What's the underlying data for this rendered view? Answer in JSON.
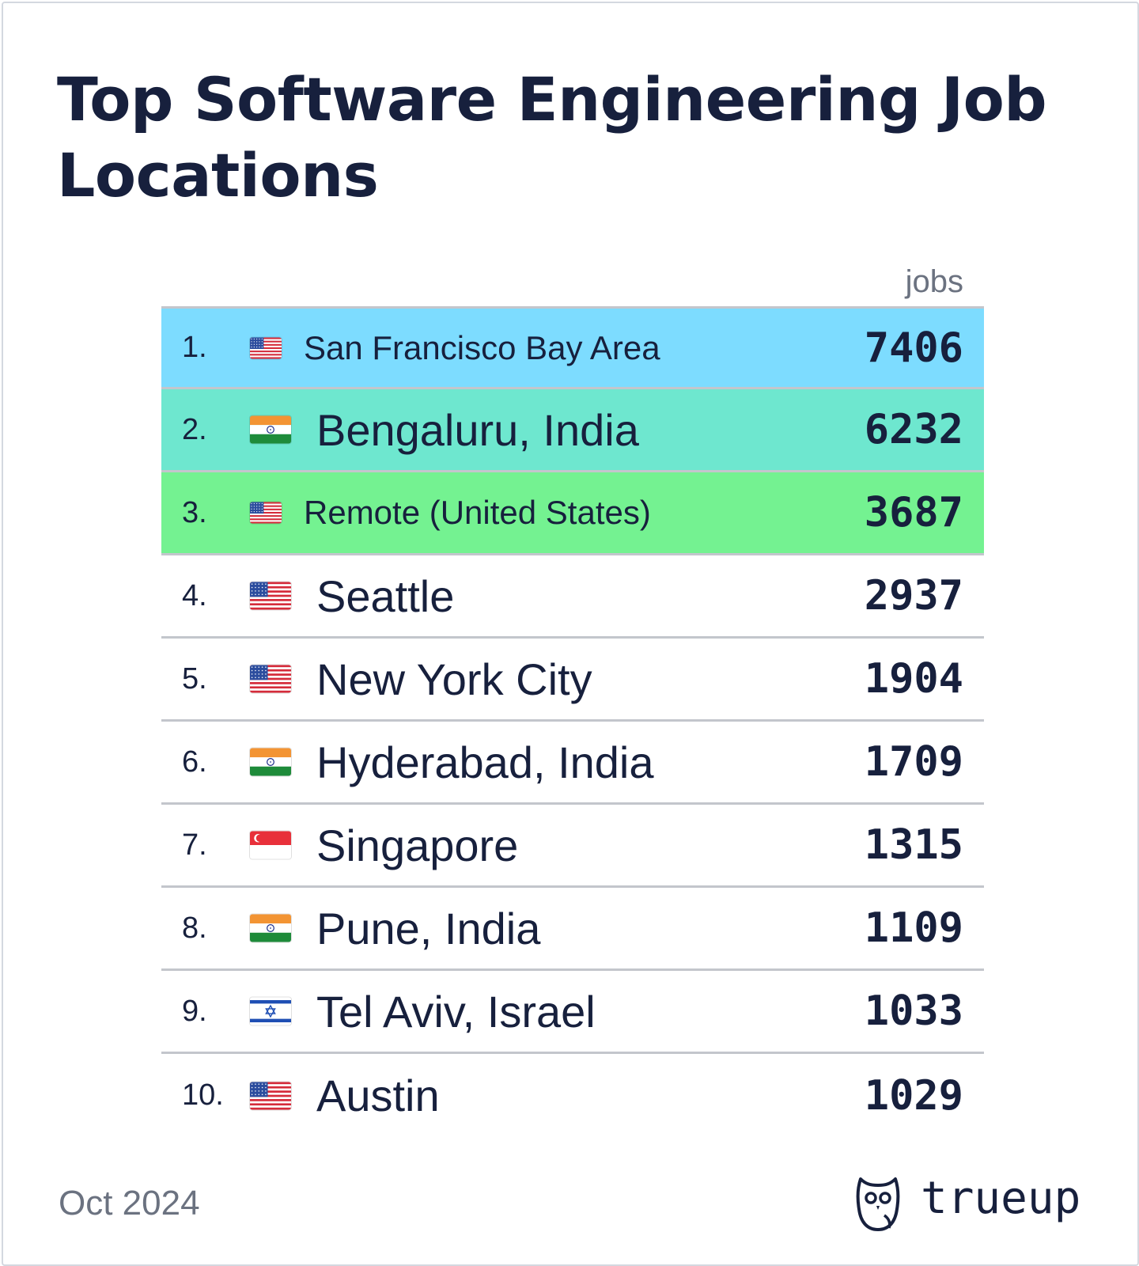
{
  "title": "Top Software Engineering Job Locations",
  "footer": {
    "date": "Oct 2024",
    "brand": "trueup"
  },
  "chart_data": {
    "type": "table",
    "title": "Top Software Engineering Job Locations",
    "value_header": "jobs",
    "rows": [
      {
        "rank": "1.",
        "location": "San Francisco Bay Area",
        "flag": "us-flag-icon",
        "jobs": 7406,
        "highlight": "#7ddcff"
      },
      {
        "rank": "2.",
        "location": "Bengaluru, India",
        "flag": "in-flag-icon",
        "jobs": 6232,
        "highlight": "#6ee7cf"
      },
      {
        "rank": "3.",
        "location": "Remote (United States)",
        "flag": "us-flag-icon",
        "jobs": 3687,
        "highlight": "#74f291"
      },
      {
        "rank": "4.",
        "location": "Seattle",
        "flag": "us-flag-icon",
        "jobs": 2937,
        "highlight": null
      },
      {
        "rank": "5.",
        "location": "New York City",
        "flag": "us-flag-icon",
        "jobs": 1904,
        "highlight": null
      },
      {
        "rank": "6.",
        "location": "Hyderabad, India",
        "flag": "in-flag-icon",
        "jobs": 1709,
        "highlight": null
      },
      {
        "rank": "7.",
        "location": "Singapore",
        "flag": "sg-flag-icon",
        "jobs": 1315,
        "highlight": null
      },
      {
        "rank": "8.",
        "location": "Pune, India",
        "flag": "in-flag-icon",
        "jobs": 1109,
        "highlight": null
      },
      {
        "rank": "9.",
        "location": "Tel Aviv, Israel",
        "flag": "il-flag-icon",
        "jobs": 1033,
        "highlight": null
      },
      {
        "rank": "10.",
        "location": "Austin",
        "flag": "us-flag-icon",
        "jobs": 1029,
        "highlight": null
      }
    ]
  }
}
